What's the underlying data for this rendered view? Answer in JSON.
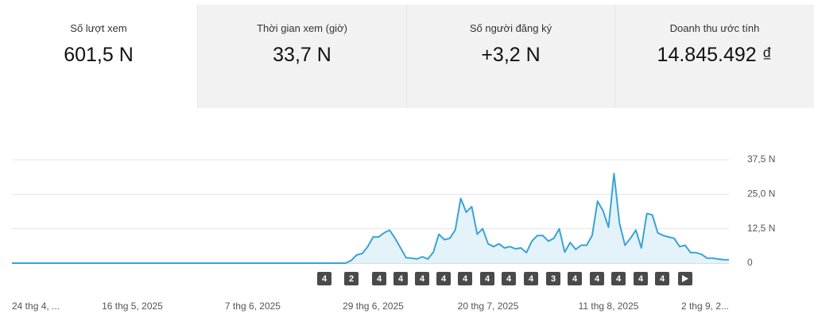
{
  "cards": [
    {
      "label": "Số lượt xem",
      "value": "601,5 N"
    },
    {
      "label": "Thời gian xem (giờ)",
      "value": "33,7 N"
    },
    {
      "label": "Số người đăng ký",
      "value": "+3,2 N"
    },
    {
      "label": "Doanh thu ước tính",
      "value": "14.845.492 ₫"
    }
  ],
  "chart_data": {
    "type": "line",
    "categories": [
      "24 thg 4, ...",
      null,
      null,
      null,
      null,
      null,
      null,
      null,
      null,
      null,
      null,
      null,
      null,
      null,
      null,
      null,
      null,
      null,
      null,
      null,
      null,
      null,
      "16 thg 5, 2025",
      null,
      null,
      null,
      null,
      null,
      null,
      null,
      null,
      null,
      null,
      null,
      null,
      null,
      null,
      null,
      null,
      null,
      null,
      null,
      null,
      null,
      "7 thg 6, 2025",
      null,
      null,
      null,
      null,
      null,
      null,
      null,
      null,
      null,
      null,
      null,
      null,
      null,
      null,
      null,
      null,
      null,
      null,
      null,
      null,
      null,
      "29 thg 6, 2025",
      null,
      null,
      null,
      null,
      null,
      null,
      null,
      null,
      null,
      null,
      null,
      null,
      null,
      null,
      null,
      null,
      null,
      null,
      null,
      null,
      "20 thg 7, 2025",
      null,
      null,
      null,
      null,
      null,
      null,
      null,
      null,
      null,
      null,
      null,
      null,
      null,
      null,
      null,
      null,
      null,
      null,
      null,
      null,
      null,
      "11 thg 8, 2025",
      null,
      null,
      null,
      null,
      null,
      null,
      null,
      null,
      null,
      null,
      null,
      null,
      null,
      null,
      null,
      null,
      null,
      null,
      null,
      null,
      null,
      "2 thg 9, 2..."
    ],
    "values": [
      0,
      0,
      0,
      0,
      0,
      0,
      0,
      0,
      0,
      0,
      0,
      0,
      0,
      0,
      0,
      0,
      0,
      0,
      0,
      0,
      0,
      0,
      0,
      0,
      0,
      0,
      0,
      0,
      0,
      0,
      0,
      0,
      0,
      0,
      0,
      0,
      0,
      0,
      0,
      0,
      0,
      0,
      0,
      0,
      0,
      0,
      0,
      0,
      0,
      0,
      0,
      0,
      0,
      0,
      0,
      0,
      0,
      0,
      0,
      0,
      0,
      0,
      1,
      3,
      3.5,
      6,
      9.5,
      9.5,
      11,
      12,
      9,
      5.5,
      2,
      1.8,
      1.5,
      2.3,
      1.5,
      4,
      10.5,
      8.5,
      9,
      12,
      23.5,
      18.5,
      20.5,
      10.5,
      12.5,
      7,
      6,
      7,
      5.5,
      6,
      5.2,
      5.5,
      3.8,
      8,
      10,
      10,
      8,
      9,
      12.5,
      4,
      7.5,
      5,
      6.5,
      6.5,
      10,
      22.5,
      19,
      13,
      32.5,
      14.5,
      6.5,
      9,
      12,
      5.5,
      18,
      17.5,
      11,
      10,
      9.5,
      9,
      6,
      6.5,
      3.8,
      3.8,
      3.2,
      1.8,
      1.8,
      1.5,
      1.2,
      1.2
    ],
    "color": "#3aa3d6",
    "fill": "#e4f3fa",
    "ylim": [
      0,
      37.5
    ],
    "yticks": [
      0,
      {
        "value": 12.5,
        "label": "12,5 N"
      },
      {
        "value": 25,
        "label": "25,0 N"
      },
      {
        "value": 37.5,
        "label": "37,5 N"
      }
    ],
    "grid": true,
    "markers": [
      "4",
      "2",
      "4",
      "4",
      "4",
      "4",
      "4",
      "4",
      "4",
      "4",
      "3",
      "4",
      "4",
      "4",
      "4",
      "4"
    ]
  }
}
